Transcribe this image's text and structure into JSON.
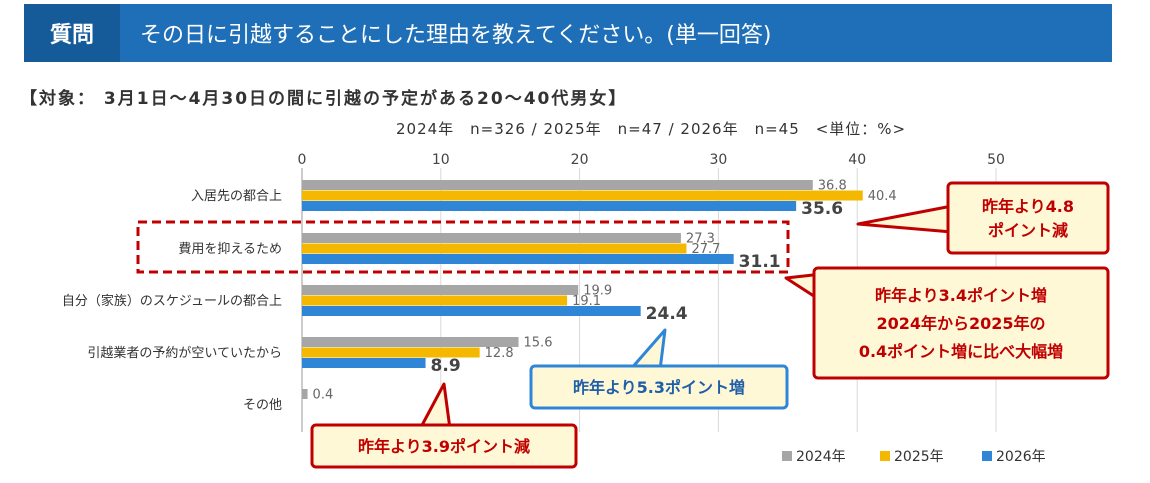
{
  "header": {
    "label": "質問",
    "question": "その日に引越することにした理由を教えてください。(単一回答)"
  },
  "subject": "【対象： 3月1日～4月30日の間に引越の予定がある20～40代男女】",
  "sample_note": "2024年　n=326 / 2025年　n=47 / 2026年　n=45　<単位：%>",
  "chart_data": {
    "type": "bar",
    "orientation": "horizontal",
    "categories": [
      "入居先の都合上",
      "費用を抑えるため",
      "自分（家族）のスケジュールの都合上",
      "引越業者の予約が空いていたから",
      "その他"
    ],
    "series": [
      {
        "name": "2024年",
        "color": "#a6a6a6",
        "values": [
          36.8,
          27.3,
          19.9,
          15.6,
          0.4
        ]
      },
      {
        "name": "2025年",
        "color": "#f5b800",
        "values": [
          40.4,
          27.7,
          19.1,
          12.8,
          null
        ]
      },
      {
        "name": "2026年",
        "color": "#2f86d6",
        "values": [
          35.6,
          31.1,
          24.4,
          8.9,
          null
        ]
      }
    ],
    "x_ticks": [
      0,
      10,
      20,
      30,
      40,
      50
    ],
    "xlim": [
      0,
      50
    ],
    "grid": true,
    "legend_position": "bottom-right",
    "callouts": [
      {
        "text": "昨年より4.8\nポイント減",
        "style": "red"
      },
      {
        "text": "昨年より3.4ポイント増\n2024年から2025年の\n0.4ポイント増に比べ大幅増",
        "style": "red"
      },
      {
        "text": "昨年より5.3ポイント増",
        "style": "blue"
      },
      {
        "text": "昨年より3.9ポイント減",
        "style": "red"
      }
    ]
  }
}
